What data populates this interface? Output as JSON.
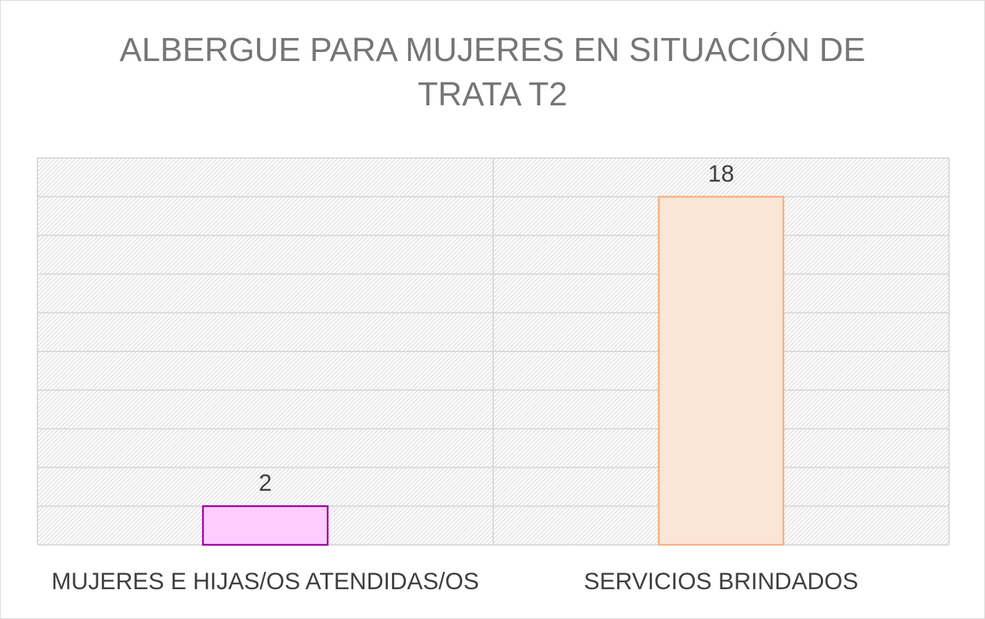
{
  "chart_data": {
    "type": "bar",
    "title_lines": [
      "ALBERGUE PARA MUJERES EN SITUACIÓN DE",
      "TRATA T2"
    ],
    "categories": [
      "MUJERES E HIJAS/OS ATENDIDAS/OS",
      "SERVICIOS BRINDADOS"
    ],
    "values": [
      2,
      18
    ],
    "ylim": [
      0,
      20
    ],
    "grid": true,
    "data_labels": true,
    "colors": {
      "fills": [
        "#ffccff",
        "#fbe5d6"
      ],
      "strokes": [
        "#990099",
        "#f4b183"
      ],
      "gridline": "#d9d9d9",
      "hatch": "#d9d9d9",
      "text": "#404040",
      "title": "#767676"
    }
  }
}
